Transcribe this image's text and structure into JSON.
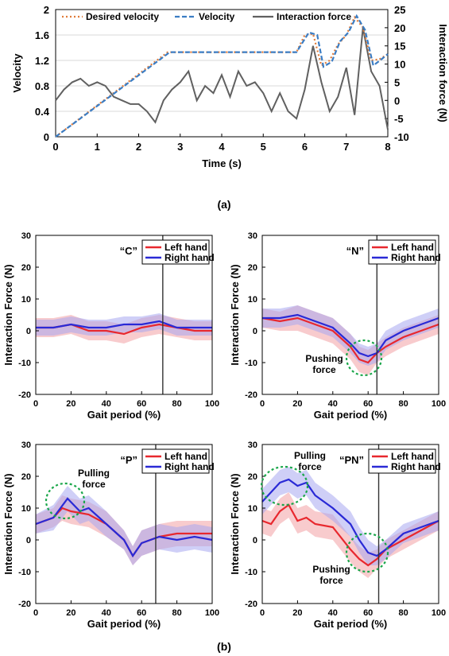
{
  "chart_data": [
    {
      "type": "line",
      "caption": "(a)",
      "xlabel": "Time (s)",
      "ylabel": "Velocity",
      "y2label": "Interaction force (N)",
      "xlim": [
        0,
        8
      ],
      "ylim": [
        0,
        2
      ],
      "y2lim": [
        -10,
        25
      ],
      "xticks": [
        0,
        1,
        2,
        3,
        4,
        5,
        6,
        7,
        8
      ],
      "yticks": [
        0,
        0.4,
        0.8,
        1.2,
        1.6,
        2
      ],
      "y2ticks": [
        -10,
        -5,
        0,
        5,
        10,
        15,
        20,
        25
      ],
      "grid": true,
      "legend_position": "top",
      "series": [
        {
          "name": "Desired velocity",
          "axis": "left",
          "color": "#e07b39",
          "style": "dotted",
          "x": [
            0,
            2.7,
            5.8,
            6,
            6.2,
            6.4,
            6.6,
            6.8,
            7,
            7.2,
            7.4,
            7.6,
            7.8,
            8
          ],
          "y": [
            0,
            1.33,
            1.33,
            1.6,
            1.62,
            1.12,
            1.2,
            1.45,
            1.6,
            1.88,
            1.72,
            1.2,
            1.22,
            1.3
          ]
        },
        {
          "name": "Velocity",
          "axis": "left",
          "color": "#3b7dc4",
          "style": "dashed",
          "x": [
            0,
            2.75,
            5.8,
            6.1,
            6.3,
            6.45,
            6.65,
            6.85,
            7.05,
            7.25,
            7.45,
            7.65,
            7.85,
            8
          ],
          "y": [
            0,
            1.33,
            1.33,
            1.64,
            1.6,
            1.1,
            1.18,
            1.5,
            1.64,
            1.9,
            1.68,
            1.12,
            1.22,
            1.3
          ]
        },
        {
          "name": "Interaction force",
          "axis": "right",
          "color": "#606060",
          "style": "solid",
          "x": [
            0,
            0.2,
            0.4,
            0.6,
            0.8,
            1,
            1.2,
            1.4,
            1.6,
            1.8,
            2,
            2.2,
            2.4,
            2.6,
            2.8,
            3,
            3.2,
            3.4,
            3.6,
            3.8,
            4,
            4.2,
            4.4,
            4.6,
            4.8,
            5,
            5.2,
            5.4,
            5.6,
            5.8,
            6,
            6.2,
            6.4,
            6.6,
            6.8,
            7,
            7.2,
            7.4,
            7.6,
            7.8,
            8
          ],
          "y": [
            0,
            3,
            5,
            6,
            4,
            5,
            4,
            1,
            0,
            -1,
            -1,
            -3,
            -6,
            0,
            3,
            5,
            8,
            0,
            4,
            2,
            7,
            1,
            8,
            4,
            5,
            2,
            -3,
            2,
            -3,
            -5,
            3,
            15,
            5,
            -3,
            1,
            9,
            -4,
            20,
            8,
            4,
            -8
          ]
        }
      ]
    },
    {
      "type": "line",
      "panel": "C",
      "title": "“C”",
      "xlabel": "Gait period (%)",
      "ylabel": "Interaction Force (N)",
      "xlim": [
        0,
        100
      ],
      "ylim": [
        -20,
        30
      ],
      "xticks": [
        0,
        20,
        40,
        60,
        80,
        100
      ],
      "yticks": [
        -20,
        -10,
        0,
        10,
        20,
        30
      ],
      "vline": 72,
      "legend_position": "top-right",
      "series": [
        {
          "name": "Left hand",
          "color": "#e8282e",
          "band_color": "#f2a0a4",
          "x": [
            0,
            10,
            20,
            30,
            40,
            50,
            60,
            70,
            80,
            90,
            100
          ],
          "y": [
            1,
            1,
            2,
            0,
            0,
            -1,
            1,
            2,
            1,
            0,
            0
          ],
          "band": [
            3,
            3,
            3,
            3,
            3,
            3,
            3,
            3,
            3,
            3,
            3
          ]
        },
        {
          "name": "Right hand",
          "color": "#2a2ad6",
          "band_color": "#a8a8f0",
          "x": [
            0,
            10,
            20,
            30,
            40,
            50,
            60,
            70,
            80,
            90,
            100
          ],
          "y": [
            1,
            1,
            2,
            1,
            1,
            2,
            2,
            3,
            1,
            1,
            1
          ],
          "band": [
            2.5,
            2.5,
            2.5,
            2.5,
            2.5,
            2.5,
            2.5,
            2.5,
            2.5,
            2.5,
            2.5
          ]
        }
      ],
      "annotations": []
    },
    {
      "type": "line",
      "panel": "N",
      "title": "“N”",
      "xlabel": "Gait period (%)",
      "ylabel": "Interaction Force (N)",
      "xlim": [
        0,
        100
      ],
      "ylim": [
        -20,
        30
      ],
      "xticks": [
        0,
        20,
        40,
        60,
        80,
        100
      ],
      "yticks": [
        -20,
        -10,
        0,
        10,
        20,
        30
      ],
      "vline": 65,
      "legend_position": "top-right",
      "series": [
        {
          "name": "Left hand",
          "color": "#e8282e",
          "band_color": "#f2a0a4",
          "x": [
            0,
            10,
            20,
            30,
            40,
            50,
            55,
            60,
            65,
            70,
            80,
            90,
            100
          ],
          "y": [
            4,
            3,
            4,
            2,
            0,
            -5,
            -9,
            -10,
            -7,
            -5,
            -2,
            0,
            2
          ],
          "band": [
            3,
            3,
            4,
            4,
            4,
            4,
            4,
            4,
            3,
            3,
            3,
            3,
            3
          ]
        },
        {
          "name": "Right hand",
          "color": "#2a2ad6",
          "band_color": "#a8a8f0",
          "x": [
            0,
            10,
            20,
            30,
            40,
            50,
            55,
            60,
            65,
            70,
            80,
            90,
            100
          ],
          "y": [
            4,
            4,
            5,
            3,
            1,
            -4,
            -7,
            -8,
            -7,
            -3,
            0,
            2,
            4
          ],
          "band": [
            3,
            3,
            3,
            3,
            3,
            3,
            3,
            3,
            3,
            3,
            3,
            3,
            3
          ]
        }
      ],
      "annotations": [
        {
          "text": "Pushing force",
          "x": 60,
          "y": -8
        }
      ]
    },
    {
      "type": "line",
      "panel": "P",
      "title": "“P”",
      "xlabel": "Gait period (%)",
      "ylabel": "Interaction Force (N)",
      "xlim": [
        0,
        100
      ],
      "ylim": [
        -20,
        30
      ],
      "xticks": [
        0,
        20,
        40,
        60,
        80,
        100
      ],
      "yticks": [
        -20,
        -10,
        0,
        10,
        20,
        30
      ],
      "vline": 68,
      "legend_position": "top-right",
      "series": [
        {
          "name": "Left hand",
          "color": "#e8282e",
          "band_color": "#f2a0a4",
          "x": [
            0,
            10,
            15,
            20,
            30,
            40,
            50,
            55,
            60,
            70,
            80,
            90,
            100
          ],
          "y": [
            5,
            7,
            10,
            9,
            8,
            5,
            0,
            -5,
            -1,
            1,
            2,
            2,
            2
          ],
          "band": [
            3,
            3,
            4,
            4,
            4,
            4,
            3,
            3,
            4,
            4,
            4,
            4,
            4
          ]
        },
        {
          "name": "Right hand",
          "color": "#2a2ad6",
          "band_color": "#a8a8f0",
          "x": [
            0,
            10,
            18,
            25,
            30,
            40,
            50,
            55,
            60,
            70,
            80,
            90,
            100
          ],
          "y": [
            5,
            7,
            13,
            9,
            10,
            5,
            0,
            -5,
            -1,
            1,
            0,
            1,
            0
          ],
          "band": [
            3,
            4,
            4,
            4,
            4,
            4,
            3,
            3,
            4,
            4,
            4,
            4,
            4
          ]
        }
      ],
      "annotations": [
        {
          "text": "Pulling force",
          "x": 15,
          "y": 12
        }
      ]
    },
    {
      "type": "line",
      "panel": "PN",
      "title": "“PN”",
      "xlabel": "Gait period (%)",
      "ylabel": "Interaction Force (N)",
      "xlim": [
        0,
        100
      ],
      "ylim": [
        -20,
        30
      ],
      "xticks": [
        0,
        20,
        40,
        60,
        80,
        100
      ],
      "yticks": [
        -20,
        -10,
        0,
        10,
        20,
        30
      ],
      "vline": 66,
      "legend_position": "top-right",
      "series": [
        {
          "name": "Left hand",
          "color": "#e8282e",
          "band_color": "#f2a0a4",
          "x": [
            0,
            5,
            10,
            15,
            20,
            25,
            30,
            40,
            50,
            55,
            60,
            65,
            70,
            80,
            90,
            100
          ],
          "y": [
            6,
            5,
            9,
            11,
            6,
            7,
            5,
            4,
            -3,
            -6,
            -8,
            -6,
            -3,
            0,
            3,
            6
          ],
          "band": [
            4,
            4,
            4,
            4,
            4,
            4,
            4,
            4,
            4,
            4,
            4,
            3,
            3,
            3,
            3,
            3
          ]
        },
        {
          "name": "Right hand",
          "color": "#2a2ad6",
          "band_color": "#a8a8f0",
          "x": [
            0,
            5,
            10,
            15,
            20,
            25,
            30,
            40,
            50,
            55,
            60,
            65,
            70,
            80,
            90,
            100
          ],
          "y": [
            12,
            15,
            18,
            19,
            17,
            18,
            14,
            10,
            5,
            0,
            -4,
            -5,
            -3,
            2,
            4,
            6
          ],
          "band": [
            4,
            4,
            4,
            4,
            4,
            4,
            4,
            4,
            4,
            4,
            4,
            3,
            3,
            3,
            3,
            3
          ]
        }
      ],
      "annotations": [
        {
          "text": "Pulling force",
          "x": 18,
          "y": 16
        },
        {
          "text": "Pushing force",
          "x": 60,
          "y": -6
        }
      ]
    }
  ],
  "captions": {
    "a": "(a)",
    "b": "(b)"
  }
}
